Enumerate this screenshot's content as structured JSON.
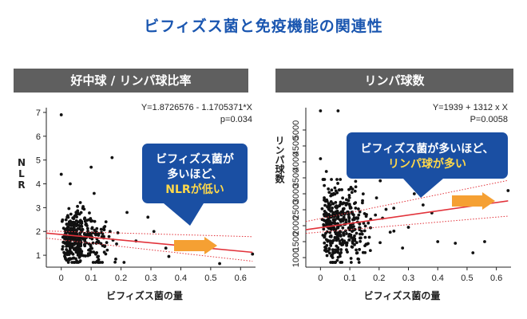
{
  "page": {
    "title": "ビフィズス菌と免疫機能の関連性"
  },
  "colors": {
    "title": "#1a56b0",
    "header_bg": "#5f5f5f",
    "callout": "#1a4fa3",
    "callout_highlight": "#ffd84a",
    "regression": "#e2333b",
    "arrow": "#f5a033",
    "points": "#111111"
  },
  "chart_data": [
    {
      "type": "scatter",
      "panel_title": "好中球 / リンパ球比率",
      "xlabel": "ビフィズス菌の量",
      "ylabel": "NLR",
      "xlim": [
        -0.05,
        0.65
      ],
      "ylim": [
        0.5,
        7.2
      ],
      "x_ticks": [
        0,
        0.1,
        0.2,
        0.3,
        0.4,
        0.5,
        0.6
      ],
      "x_tick_labels": [
        "0",
        "0.1",
        "0.2",
        "0.3",
        "0.4",
        "0.5",
        "0.6"
      ],
      "y_ticks": [
        1,
        2,
        3,
        4,
        5,
        6,
        7
      ],
      "y_tick_labels": [
        "1",
        "2",
        "3",
        "4",
        "5",
        "6",
        "7"
      ],
      "equation": "Y=1.8726576 - 1.1705371*X",
      "p_value": "p=0.034",
      "regression": {
        "intercept": 1.8726576,
        "slope": -1.1705371
      },
      "ci_band": {
        "low_at_0": 1.72,
        "high_at_0": 2.02,
        "low_at_max": 0.75,
        "high_at_max": 1.78
      },
      "callout": {
        "lines": [
          "ビフィズス菌が",
          "多いほど、"
        ],
        "highlight": "NLRが低い"
      },
      "generated_points": {
        "count": 380,
        "seed": 17,
        "x_mean": 0.06,
        "x_spread": 0.075,
        "y_mean": 1.75,
        "y_spread": 0.55
      },
      "outliers": [
        {
          "x": 0.0,
          "y": 6.9
        },
        {
          "x": 0.0,
          "y": 4.4
        },
        {
          "x": 0.1,
          "y": 4.7
        },
        {
          "x": 0.17,
          "y": 5.1
        },
        {
          "x": 0.11,
          "y": 3.6
        },
        {
          "x": 0.03,
          "y": 4.0
        },
        {
          "x": 0.29,
          "y": 2.6
        },
        {
          "x": 0.31,
          "y": 2.0
        },
        {
          "x": 0.35,
          "y": 1.3
        },
        {
          "x": 0.42,
          "y": 1.25
        },
        {
          "x": 0.36,
          "y": 0.95
        },
        {
          "x": 0.53,
          "y": 0.65
        },
        {
          "x": 0.64,
          "y": 1.05
        },
        {
          "x": 0.25,
          "y": 1.6
        },
        {
          "x": 0.22,
          "y": 2.8
        }
      ]
    },
    {
      "type": "scatter",
      "panel_title": "リンパ球数",
      "xlabel": "ビフィズス菌の量",
      "ylabel": "リンパ球数",
      "xlim": [
        -0.05,
        0.65
      ],
      "ylim": [
        700,
        5700
      ],
      "x_ticks": [
        0,
        0.1,
        0.2,
        0.3,
        0.4,
        0.5,
        0.6
      ],
      "x_tick_labels": [
        "0",
        "0.1",
        "0.2",
        "0.3",
        "0.4",
        "0.5",
        "0.6"
      ],
      "y_ticks": [
        1000,
        1500,
        2000,
        2500,
        3000,
        3500,
        4000,
        4500,
        5000
      ],
      "y_tick_labels": [
        "1000",
        "1500",
        "2000",
        "2500",
        "3000",
        "3500",
        "4000",
        "4500",
        "5000"
      ],
      "equation": "Y=1939 + 1312 x X",
      "p_value": "P=0.0058",
      "regression": {
        "intercept": 1939,
        "slope": 1312
      },
      "ci_band": {
        "low_at_0": 1760,
        "high_at_0": 2130,
        "low_at_max": 2300,
        "high_at_max": 3420
      },
      "callout": {
        "lines": [
          "ビフィズス菌が多いほど、"
        ],
        "highlight": "リンパ球が多い"
      },
      "generated_points": {
        "count": 400,
        "seed": 29,
        "x_mean": 0.07,
        "x_spread": 0.08,
        "y_mean": 2000,
        "y_spread": 650
      },
      "outliers": [
        {
          "x": 0.0,
          "y": 5600
        },
        {
          "x": 0.06,
          "y": 5600
        },
        {
          "x": 0.0,
          "y": 4100
        },
        {
          "x": 0.02,
          "y": 3700
        },
        {
          "x": 0.32,
          "y": 3000
        },
        {
          "x": 0.35,
          "y": 2650
        },
        {
          "x": 0.3,
          "y": 1950
        },
        {
          "x": 0.46,
          "y": 1450
        },
        {
          "x": 0.52,
          "y": 1150
        },
        {
          "x": 0.56,
          "y": 1500
        },
        {
          "x": 0.4,
          "y": 1500
        },
        {
          "x": 0.25,
          "y": 2550
        },
        {
          "x": 0.64,
          "y": 3100
        },
        {
          "x": 0.38,
          "y": 2400
        },
        {
          "x": 0.28,
          "y": 1300
        }
      ]
    }
  ]
}
